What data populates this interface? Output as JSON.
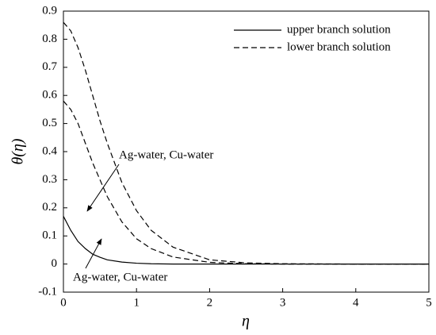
{
  "chart_data": {
    "type": "line",
    "x_label": "η",
    "y_label": "θ(η)",
    "x": [
      0,
      0.1,
      0.2,
      0.3,
      0.4,
      0.5,
      0.6,
      0.8,
      1,
      1.2,
      1.5,
      2,
      2.5,
      3,
      4,
      5
    ],
    "series": [
      {
        "name": "upper branch solution",
        "color": "#000000",
        "dash": false,
        "values": [
          0.17,
          0.12,
          0.08,
          0.055,
          0.035,
          0.024,
          0.015,
          0.007,
          0.003,
          0.001,
          0,
          0,
          0,
          0,
          0,
          0
        ]
      },
      {
        "name": "lower branch solution",
        "color": "#000000",
        "dash": true,
        "values": [
          0.86,
          0.83,
          0.77,
          0.69,
          0.6,
          0.51,
          0.43,
          0.29,
          0.19,
          0.12,
          0.06,
          0.015,
          0.004,
          0.001,
          0,
          0
        ]
      },
      {
        "color": "#000000",
        "dash": true,
        "values": [
          0.58,
          0.55,
          0.5,
          0.43,
          0.36,
          0.3,
          0.24,
          0.15,
          0.09,
          0.055,
          0.025,
          0.006,
          0.001,
          0,
          0,
          0
        ]
      }
    ],
    "annotations": [
      "Ag-water, Cu-water",
      "Ag-water, Cu-water"
    ],
    "xlim": [
      0,
      5
    ],
    "ylim": [
      -0.1,
      0.9
    ],
    "xticks": [
      0,
      1,
      2,
      3,
      4,
      5
    ],
    "yticks": [
      -0.1,
      0,
      0.1,
      0.2,
      0.3,
      0.4,
      0.5,
      0.6,
      0.7,
      0.8,
      0.9
    ],
    "grid": false,
    "legend": "upper right"
  }
}
